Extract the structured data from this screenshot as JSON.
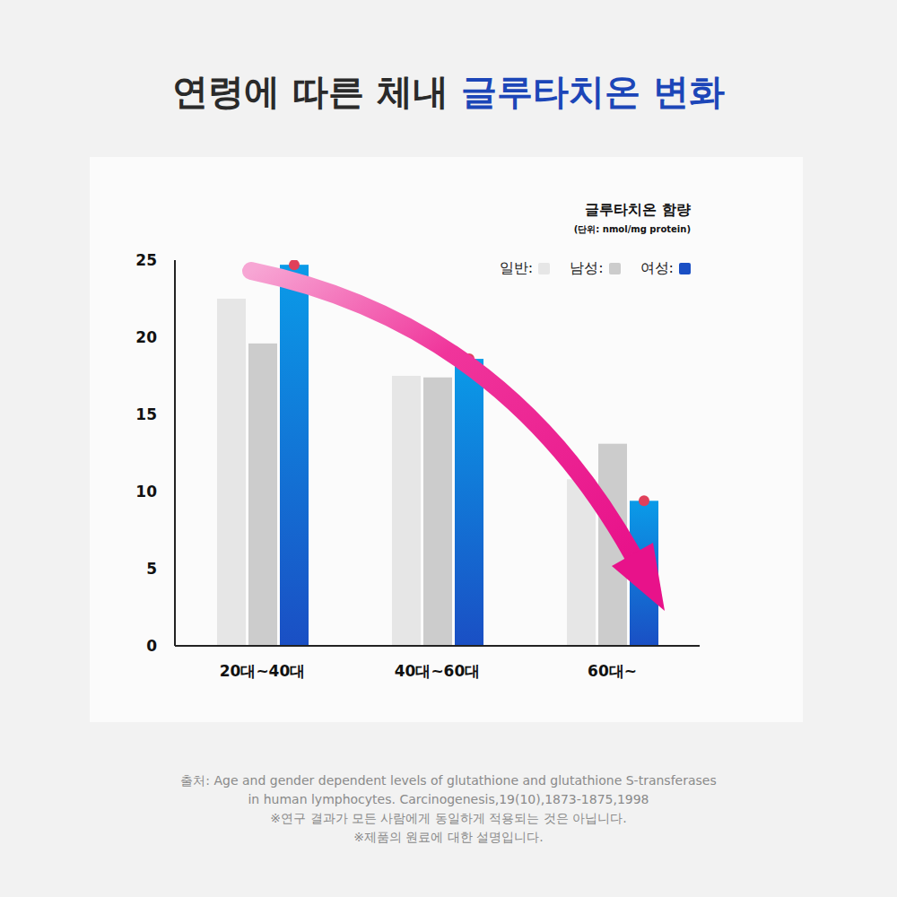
{
  "chart_data": {
    "type": "bar",
    "title": "연령에 따른 체내 글루타치온 변화",
    "legend_title": "글루타치온 함량",
    "unit_label": "(단위: nmol/mg protein)",
    "categories": [
      "20대~40대",
      "40대~60대",
      "60대~"
    ],
    "series": [
      {
        "name": "일반:",
        "color": "#e6e6e6",
        "values": [
          22.5,
          17.5,
          10.8
        ]
      },
      {
        "name": "남성:",
        "color": "#cccccc",
        "values": [
          19.6,
          17.4,
          13.1
        ]
      },
      {
        "name": "여성:",
        "color": "#1a4fc4",
        "values": [
          24.7,
          18.6,
          9.4
        ],
        "marker": "circle"
      }
    ],
    "ylim": [
      0,
      25
    ],
    "yticks": [
      0,
      5,
      10,
      15,
      20,
      25
    ],
    "grid": false,
    "legend": "upper right",
    "source": "출처: Age and gender dependent levels of glutathione and glutathione S-transferases in human lymphocytes. Carcinogenesis,19(10),1873-1875,1998",
    "notes": [
      "※연구 결과가 모든 사람에게 동일하게 적용되는 것은 아닙니다.",
      "※제품의 원료에 대한 설명입니다."
    ]
  }
}
